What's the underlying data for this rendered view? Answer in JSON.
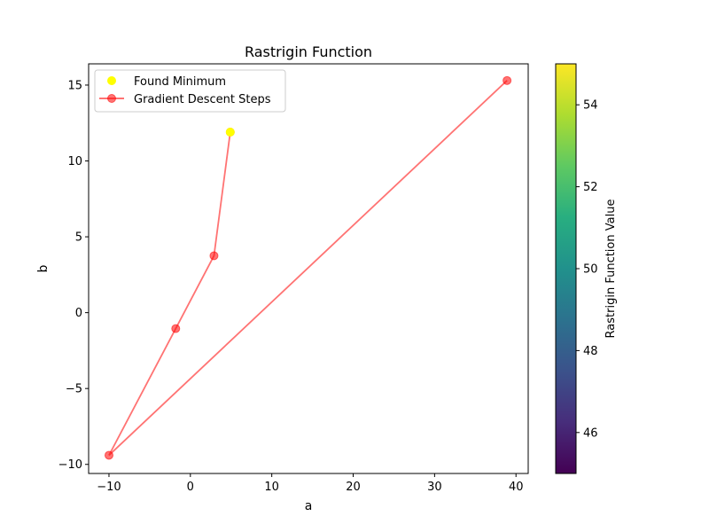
{
  "chart_data": {
    "type": "scatter",
    "title": "Rastrigin Function",
    "xlabel": "a",
    "ylabel": "b",
    "xlim": [
      -12.5,
      41.5
    ],
    "ylim": [
      -10.6,
      16.4
    ],
    "xticks": [
      -10,
      0,
      10,
      20,
      30,
      40
    ],
    "xtick_labels": [
      "−10",
      "0",
      "10",
      "20",
      "30",
      "40"
    ],
    "yticks": [
      -10,
      -5,
      0,
      5,
      10,
      15
    ],
    "ytick_labels": [
      "−10",
      "−5",
      "0",
      "5",
      "10",
      "15"
    ],
    "legend_position": "upper-left",
    "grid": false,
    "series": [
      {
        "name": "Found Minimum",
        "kind": "scatter",
        "color": "#ffff00",
        "points": [
          {
            "x": 4.9,
            "y": 11.9
          }
        ]
      },
      {
        "name": "Gradient Descent Steps",
        "kind": "line-markers",
        "color": "#ff0000",
        "alpha": 0.55,
        "points": [
          {
            "x": 38.9,
            "y": 15.3
          },
          {
            "x": -10.0,
            "y": -9.4
          },
          {
            "x": -1.8,
            "y": -1.05
          },
          {
            "x": 2.9,
            "y": 3.75
          },
          {
            "x": 4.9,
            "y": 11.9
          }
        ]
      }
    ],
    "colorbar": {
      "label": "Rastrigin Function Value",
      "colormap": "viridis",
      "range": [
        45,
        55
      ],
      "ticks": [
        46,
        48,
        50,
        52,
        54
      ],
      "tick_labels": [
        "46",
        "48",
        "50",
        "52",
        "54"
      ]
    }
  }
}
